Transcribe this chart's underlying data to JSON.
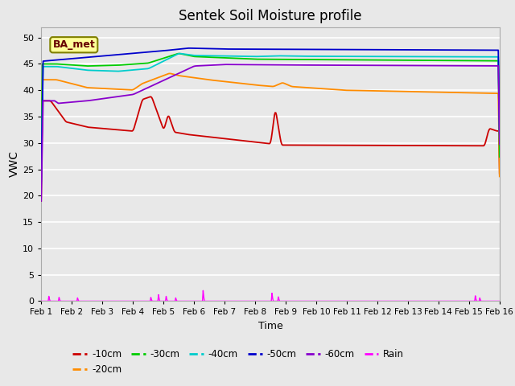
{
  "title": "Sentek Soil Moisture profile",
  "xlabel": "Time",
  "ylabel": "VWC",
  "ylim": [
    0,
    52
  ],
  "yticks": [
    0,
    5,
    10,
    15,
    20,
    25,
    30,
    35,
    40,
    45,
    50
  ],
  "x_labels": [
    "Feb 1",
    "Feb 2",
    "Feb 3",
    "Feb 4",
    "Feb 5",
    "Feb 6",
    "Feb 7",
    "Feb 8",
    "Feb 9",
    "Feb 10",
    "Feb 11",
    "Feb 12",
    "Feb 13",
    "Feb 14",
    "Feb 15",
    "Feb 16"
  ],
  "n_points": 720,
  "figure_bg": "#e8e8e8",
  "plot_bg": "#e8e8e8",
  "grid_color": "#ffffff",
  "annotation_text": "BA_met",
  "annotation_bg": "#ffff99",
  "annotation_border": "#808000",
  "colors": {
    "-10cm": "#cc0000",
    "-20cm": "#ff8c00",
    "-30cm": "#00cc00",
    "-40cm": "#00cccc",
    "-50cm": "#0000cc",
    "-60cm": "#8800cc",
    "Rain": "#ff00ff"
  }
}
